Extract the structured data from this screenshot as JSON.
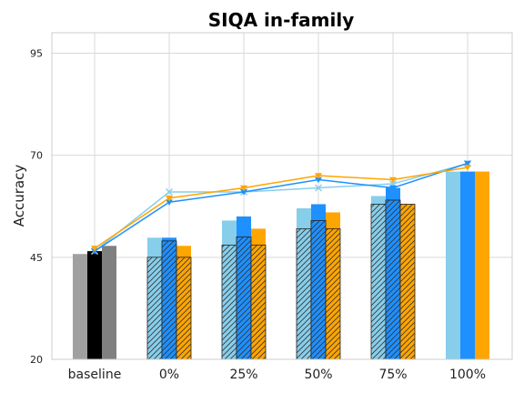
{
  "chart_data": {
    "type": "bar",
    "title": "SIQA in-family",
    "xlabel": "",
    "ylabel": "Accuracy",
    "ylim": [
      20,
      100
    ],
    "yticks": [
      20,
      45,
      70,
      95
    ],
    "grid": true,
    "legend": "none",
    "categories": [
      "baseline",
      "0%",
      "25%",
      "50%",
      "75%",
      "100%"
    ],
    "colors": {
      "light": "#87CEEB",
      "blue": "#1E90FF",
      "orange": "#FFA500",
      "baseline": [
        "#A0A0A0",
        "#000000",
        "#808080"
      ]
    },
    "baseline_bars": [
      45.8,
      46.5,
      47.8
    ],
    "solid_bars": {
      "light": [
        null,
        49.8,
        54.0,
        57.0,
        60.0,
        66.0
      ],
      "blue": [
        null,
        49.8,
        55.0,
        58.0,
        62.0,
        66.0
      ],
      "orange": [
        null,
        47.8,
        52.0,
        56.0,
        null,
        66.0
      ]
    },
    "hatched_bars": {
      "light": [
        null,
        45.0,
        48.0,
        52.0,
        58.0,
        null
      ],
      "blue": [
        null,
        49.0,
        50.0,
        54.0,
        59.0,
        null
      ],
      "orange": [
        null,
        45.0,
        48.0,
        52.0,
        58.0,
        null
      ]
    },
    "lines": [
      {
        "color": "#87CEEB",
        "marker": "x",
        "values": [
          46.5,
          61.0,
          61.0,
          62.0,
          63.0,
          68.0
        ]
      },
      {
        "color": "#1E90FF",
        "marker": "triangle",
        "values": [
          46.5,
          58.5,
          61.0,
          64.0,
          62.0,
          68.0
        ]
      },
      {
        "color": "#FFA500",
        "marker": "triangle",
        "values": [
          47.2,
          59.5,
          62.0,
          65.0,
          64.0,
          67.0
        ]
      }
    ]
  }
}
